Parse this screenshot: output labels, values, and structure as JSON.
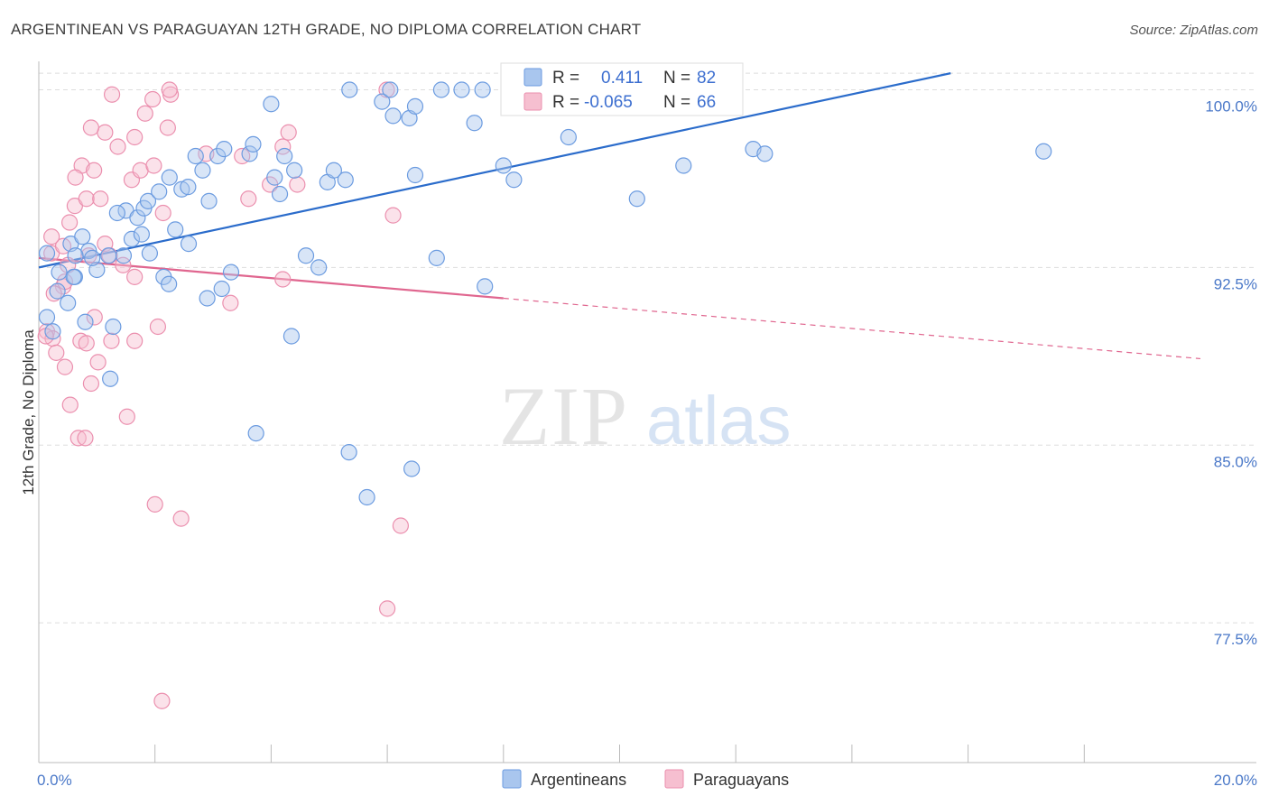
{
  "header": {
    "title": "ARGENTINEAN VS PARAGUAYAN 12TH GRADE, NO DIPLOMA CORRELATION CHART",
    "source": "Source: ZipAtlas.com"
  },
  "watermark": {
    "zip": "ZIP",
    "atlas": "atlas"
  },
  "legend_box": {
    "rows": [
      {
        "r_label": "R =",
        "r_value": "0.411",
        "n_label": "N =",
        "n_value": "82"
      },
      {
        "r_label": "R =",
        "r_value": "-0.065",
        "n_label": "N =",
        "n_value": "66"
      }
    ]
  },
  "bottom_legend": {
    "items": [
      {
        "label": "Argentineans"
      },
      {
        "label": "Paraguayans"
      }
    ]
  },
  "colors": {
    "blue_fill": "#a9c6ee",
    "blue_stroke": "#6b9be0",
    "blue_line": "#2b6ccb",
    "pink_fill": "#f6bfd0",
    "pink_stroke": "#eb8fae",
    "pink_line": "#e0668f",
    "grid": "#dddddd",
    "tick_text": "#4a78c8"
  },
  "chart_data": {
    "type": "scatter",
    "title": "ARGENTINEAN VS PARAGUAYAN 12TH GRADE, NO DIPLOMA CORRELATION CHART",
    "xlabel": "",
    "ylabel": "12th Grade, No Diploma",
    "xlim": [
      0,
      20
    ],
    "ylim": [
      71.6,
      101.2
    ],
    "x_tick_labels": [
      {
        "value": 0,
        "label": "0.0%"
      },
      {
        "value": 20,
        "label": "20.0%"
      }
    ],
    "x_minor_ticks": [
      2,
      4,
      6,
      8,
      10,
      12,
      14,
      16,
      18
    ],
    "y_ticks": [
      {
        "value": 100,
        "label": "100.0%"
      },
      {
        "value": 92.5,
        "label": "92.5%"
      },
      {
        "value": 85,
        "label": "85.0%"
      },
      {
        "value": 77.5,
        "label": "77.5%"
      }
    ],
    "grid": true,
    "series": [
      {
        "name": "Argentineans",
        "color": "#6b9be0",
        "trend": {
          "x": [
            0,
            15.7
          ],
          "y": [
            92.5,
            100.7
          ],
          "dashed_x": null
        },
        "points": [
          [
            0.14,
            90.4
          ],
          [
            0.24,
            89.8
          ],
          [
            0.35,
            92.3
          ],
          [
            0.55,
            93.5
          ],
          [
            0.75,
            93.8
          ],
          [
            0.86,
            93.2
          ],
          [
            0.62,
            92.1
          ],
          [
            0.6,
            92.1
          ],
          [
            0.63,
            93.0
          ],
          [
            1.0,
            92.4
          ],
          [
            1.2,
            93.0
          ],
          [
            1.5,
            94.9
          ],
          [
            1.6,
            93.7
          ],
          [
            1.7,
            94.6
          ],
          [
            1.35,
            94.8
          ],
          [
            1.81,
            95.0
          ],
          [
            1.88,
            95.3
          ],
          [
            1.91,
            93.1
          ],
          [
            2.07,
            95.7
          ],
          [
            2.15,
            92.1
          ],
          [
            2.25,
            96.3
          ],
          [
            2.35,
            94.1
          ],
          [
            2.46,
            95.8
          ],
          [
            2.57,
            95.9
          ],
          [
            2.7,
            97.2
          ],
          [
            2.82,
            96.6
          ],
          [
            2.93,
            95.3
          ],
          [
            3.08,
            97.2
          ],
          [
            3.19,
            97.5
          ],
          [
            3.31,
            92.3
          ],
          [
            3.63,
            97.3
          ],
          [
            3.69,
            97.7
          ],
          [
            4.06,
            96.3
          ],
          [
            4.0,
            99.4
          ],
          [
            4.15,
            95.6
          ],
          [
            4.23,
            97.2
          ],
          [
            4.4,
            96.6
          ],
          [
            4.6,
            93.0
          ],
          [
            4.82,
            92.5
          ],
          [
            4.97,
            96.1
          ],
          [
            5.08,
            96.6
          ],
          [
            5.28,
            96.2
          ],
          [
            5.35,
            100.0
          ],
          [
            5.91,
            99.5
          ],
          [
            6.05,
            100.0
          ],
          [
            6.1,
            98.9
          ],
          [
            6.38,
            98.8
          ],
          [
            6.48,
            99.3
          ],
          [
            6.48,
            96.4
          ],
          [
            6.93,
            100.0
          ],
          [
            7.28,
            100.0
          ],
          [
            6.85,
            92.9
          ],
          [
            7.5,
            98.6
          ],
          [
            7.64,
            100.0
          ],
          [
            8.0,
            96.8
          ],
          [
            8.18,
            96.2
          ],
          [
            9.6,
            99.6
          ],
          [
            9.12,
            98.0
          ],
          [
            10.3,
            95.4
          ],
          [
            11.1,
            96.8
          ],
          [
            12.3,
            97.5
          ],
          [
            12.5,
            97.3
          ],
          [
            17.3,
            97.4
          ],
          [
            1.23,
            87.8
          ],
          [
            3.74,
            85.5
          ],
          [
            5.34,
            84.7
          ],
          [
            5.65,
            82.8
          ],
          [
            6.42,
            84.0
          ],
          [
            0.8,
            90.2
          ],
          [
            2.24,
            91.8
          ],
          [
            2.9,
            91.2
          ],
          [
            1.28,
            90.0
          ],
          [
            4.35,
            89.6
          ],
          [
            7.68,
            91.7
          ],
          [
            3.15,
            91.6
          ],
          [
            2.58,
            93.5
          ],
          [
            0.32,
            91.5
          ],
          [
            1.77,
            93.9
          ],
          [
            0.14,
            93.1
          ],
          [
            0.5,
            91.0
          ],
          [
            0.92,
            92.9
          ],
          [
            1.46,
            93.0
          ]
        ]
      },
      {
        "name": "Paraguayans",
        "color": "#eb8fae",
        "trend": {
          "x": [
            0,
            8.0
          ],
          "y": [
            92.9,
            91.2
          ],
          "dashed_x": [
            8.0,
            20
          ]
        },
        "points": [
          [
            0.14,
            89.8
          ],
          [
            0.24,
            89.5
          ],
          [
            0.45,
            88.3
          ],
          [
            0.72,
            89.4
          ],
          [
            0.82,
            89.3
          ],
          [
            0.96,
            90.4
          ],
          [
            1.25,
            89.4
          ],
          [
            1.65,
            89.4
          ],
          [
            0.68,
            85.3
          ],
          [
            0.8,
            85.3
          ],
          [
            0.9,
            87.6
          ],
          [
            1.02,
            88.5
          ],
          [
            1.52,
            86.2
          ],
          [
            0.54,
            86.7
          ],
          [
            0.42,
            91.7
          ],
          [
            0.26,
            91.4
          ],
          [
            0.22,
            93.1
          ],
          [
            0.42,
            93.4
          ],
          [
            0.5,
            92.6
          ],
          [
            0.86,
            93.0
          ],
          [
            1.14,
            93.5
          ],
          [
            1.45,
            92.6
          ],
          [
            1.65,
            92.1
          ],
          [
            0.22,
            93.8
          ],
          [
            0.53,
            94.4
          ],
          [
            0.62,
            95.1
          ],
          [
            0.82,
            95.4
          ],
          [
            1.06,
            95.4
          ],
          [
            1.22,
            93.0
          ],
          [
            1.6,
            96.2
          ],
          [
            1.75,
            96.6
          ],
          [
            1.98,
            96.8
          ],
          [
            2.14,
            94.8
          ],
          [
            0.74,
            96.8
          ],
          [
            0.63,
            96.3
          ],
          [
            0.95,
            96.6
          ],
          [
            1.36,
            97.6
          ],
          [
            1.65,
            98.0
          ],
          [
            1.83,
            99.0
          ],
          [
            1.14,
            98.2
          ],
          [
            0.9,
            98.4
          ],
          [
            1.26,
            99.8
          ],
          [
            2.27,
            99.8
          ],
          [
            1.96,
            99.6
          ],
          [
            2.22,
            98.4
          ],
          [
            2.25,
            100.0
          ],
          [
            2.88,
            97.3
          ],
          [
            3.5,
            97.2
          ],
          [
            3.61,
            95.4
          ],
          [
            3.98,
            96.0
          ],
          [
            4.45,
            96.0
          ],
          [
            4.2,
            97.6
          ],
          [
            4.3,
            98.2
          ],
          [
            5.99,
            100.0
          ],
          [
            6.1,
            94.7
          ],
          [
            3.3,
            91.0
          ],
          [
            4.2,
            92.0
          ],
          [
            2.05,
            90.0
          ],
          [
            2.0,
            82.5
          ],
          [
            2.45,
            81.9
          ],
          [
            2.12,
            74.2
          ],
          [
            6.0,
            78.1
          ],
          [
            6.23,
            81.6
          ],
          [
            0.45,
            91.9
          ],
          [
            0.3,
            88.9
          ],
          [
            0.12,
            89.6
          ]
        ]
      }
    ]
  }
}
